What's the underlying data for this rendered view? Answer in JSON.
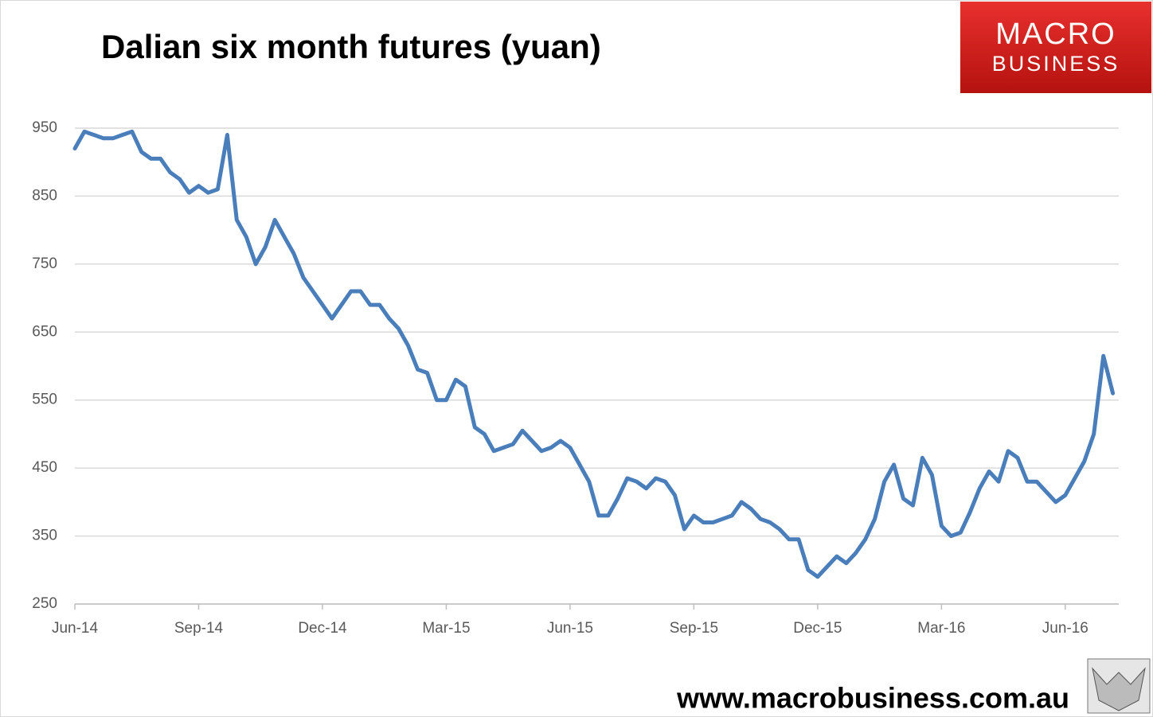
{
  "chart_data": {
    "type": "line",
    "title": "Dalian six month futures (yuan)",
    "categories": [
      "Jun-14",
      null,
      null,
      null,
      null,
      null,
      null,
      null,
      null,
      null,
      null,
      null,
      null,
      "Sep-14",
      null,
      null,
      null,
      null,
      null,
      null,
      null,
      null,
      null,
      null,
      null,
      null,
      "Dec-14",
      null,
      null,
      null,
      null,
      null,
      null,
      null,
      null,
      null,
      null,
      null,
      null,
      "Mar-15",
      null,
      null,
      null,
      null,
      null,
      null,
      null,
      null,
      null,
      null,
      null,
      null,
      "Jun-15",
      null,
      null,
      null,
      null,
      null,
      null,
      null,
      null,
      null,
      null,
      null,
      null,
      "Sep-15",
      null,
      null,
      null,
      null,
      null,
      null,
      null,
      null,
      null,
      null,
      null,
      null,
      "Dec-15",
      null,
      null,
      null,
      null,
      null,
      null,
      null,
      null,
      null,
      null,
      null,
      null,
      "Mar-16",
      null,
      null,
      null,
      null,
      null,
      null,
      null,
      null,
      null,
      null,
      null,
      null,
      "Jun-16",
      null,
      null,
      null,
      null,
      null
    ],
    "values": [
      920,
      945,
      940,
      935,
      935,
      940,
      945,
      915,
      905,
      905,
      885,
      875,
      855,
      865,
      855,
      860,
      940,
      815,
      790,
      750,
      775,
      815,
      790,
      765,
      730,
      710,
      690,
      670,
      690,
      710,
      710,
      690,
      690,
      670,
      655,
      630,
      595,
      590,
      550,
      550,
      580,
      570,
      510,
      500,
      475,
      480,
      485,
      505,
      490,
      475,
      480,
      490,
      480,
      455,
      430,
      380,
      380,
      405,
      435,
      430,
      420,
      435,
      430,
      410,
      360,
      380,
      370,
      370,
      375,
      380,
      400,
      390,
      375,
      370,
      360,
      345,
      345,
      300,
      290,
      305,
      320,
      310,
      325,
      345,
      375,
      430,
      455,
      405,
      395,
      465,
      440,
      365,
      350,
      355,
      385,
      420,
      445,
      430,
      475,
      465,
      430,
      430,
      415,
      400,
      410,
      435,
      460,
      500,
      615,
      560
    ],
    "color": "#4a7ebb",
    "ylim": [
      250,
      950
    ],
    "yticks": [
      250,
      350,
      450,
      550,
      650,
      750,
      850,
      950
    ],
    "grid": true
  },
  "logo": {
    "line1": "MACRO",
    "line2": "BUSINESS"
  },
  "footer": {
    "url": "www.macrobusiness.com.au"
  }
}
